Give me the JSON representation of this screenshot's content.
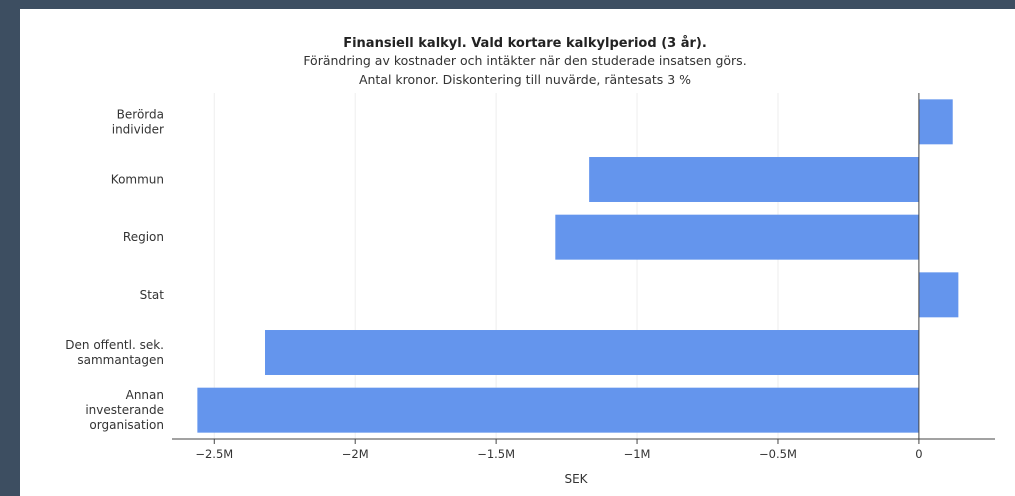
{
  "chart_data": {
    "type": "bar",
    "orientation": "horizontal",
    "title": "Finansiell kalkyl. Vald kortare kalkylperiod (3 år).",
    "subtitle": [
      "Förändring av kostnader och intäkter när den studerade insatsen görs.",
      "Antal kronor. Diskontering till nuvärde, räntesats 3 %"
    ],
    "categories": [
      [
        "Berörda",
        "individer"
      ],
      [
        "Kommun"
      ],
      [
        "Region"
      ],
      [
        "Stat"
      ],
      [
        "Den offentl. sek.",
        "sammantagen"
      ],
      [
        "Annan",
        "investerande",
        "organisation"
      ]
    ],
    "values": [
      120000,
      -1170000,
      -1290000,
      140000,
      -2320000,
      -2560000
    ],
    "xlabel": "SEK",
    "ylabel": "",
    "xlim": [
      -2.65,
      0.27
    ],
    "xlim_unit": "M",
    "x_ticks": [
      {
        "value": -2.5,
        "label": "−2.5M"
      },
      {
        "value": -2,
        "label": "−2M"
      },
      {
        "value": -1.5,
        "label": "−1.5M"
      },
      {
        "value": -1,
        "label": "−1M"
      },
      {
        "value": -0.5,
        "label": "−0.5M"
      },
      {
        "value": 0,
        "label": "0"
      }
    ],
    "grid": true,
    "bar_color": "#6495ed"
  }
}
